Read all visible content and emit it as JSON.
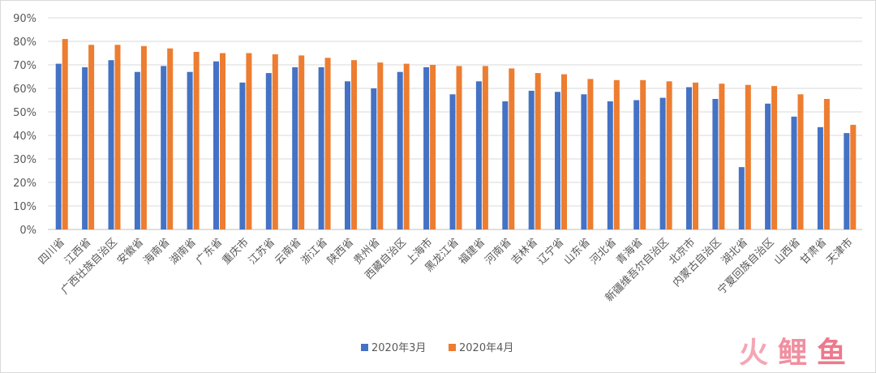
{
  "chart_data": {
    "type": "bar",
    "categories": [
      "四川省",
      "江西省",
      "广西壮族自治区",
      "安徽省",
      "海南省",
      "湖南省",
      "广东省",
      "重庆市",
      "江苏省",
      "云南省",
      "浙江省",
      "陕西省",
      "贵州省",
      "西藏自治区",
      "上海市",
      "黑龙江省",
      "福建省",
      "河南省",
      "吉林省",
      "辽宁省",
      "山东省",
      "河北省",
      "青海省",
      "新疆维吾尔自治区",
      "北京市",
      "内蒙古自治区",
      "湖北省",
      "宁夏回族自治区",
      "山西省",
      "甘肃省",
      "天津市"
    ],
    "series": [
      {
        "name": "2020年3月",
        "color": "#4472c4",
        "values": [
          70.5,
          69,
          72,
          67,
          69.5,
          67,
          71.5,
          62.5,
          66.5,
          69,
          69,
          63,
          60,
          67,
          69,
          57.5,
          63,
          54.5,
          59,
          58.5,
          57.5,
          54.5,
          55,
          56,
          60.5,
          55.5,
          26.5,
          53.5,
          48,
          43.5,
          41
        ]
      },
      {
        "name": "2020年4月",
        "color": "#ed7d31",
        "values": [
          81,
          78.5,
          78.5,
          78,
          77,
          75.5,
          75,
          75,
          74.5,
          74,
          73,
          72,
          71,
          70.5,
          70,
          69.5,
          69.5,
          68.5,
          66.5,
          66,
          64,
          63.5,
          63.5,
          63,
          62.5,
          62,
          61.5,
          61,
          57.5,
          55.5,
          44.5
        ]
      }
    ],
    "yTicks": [
      "0%",
      "10%",
      "20%",
      "30%",
      "40%",
      "50%",
      "60%",
      "70%",
      "80%",
      "90%"
    ],
    "ylim": [
      0,
      90
    ],
    "grid": true,
    "legend": "bottom-center"
  },
  "watermark": {
    "chars": [
      "火",
      "鲤",
      "鱼"
    ],
    "colors": [
      "#f4a6b4",
      "#f08fa0",
      "#ec7a8c"
    ]
  }
}
